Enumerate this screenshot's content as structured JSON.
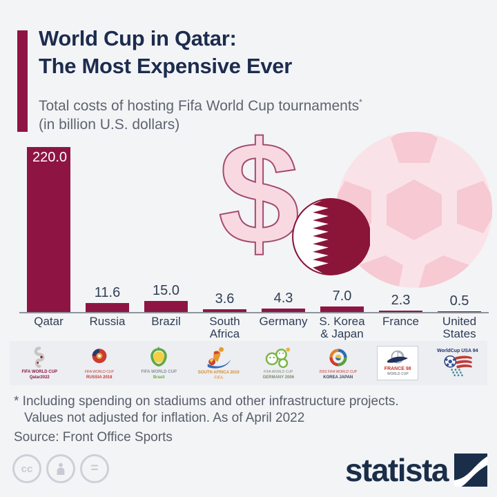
{
  "header": {
    "title_line1": "World Cup in Qatar:",
    "title_line2": "The Most Expensive Ever",
    "subtitle_line1": "Total costs of hosting Fifa World Cup tournaments",
    "subtitle_asterisk": "*",
    "subtitle_line2": "(in billion U.S. dollars)"
  },
  "chart_data": {
    "type": "bar",
    "title": "Total costs of hosting Fifa World Cup tournaments (in billion U.S. dollars)",
    "categories": [
      "Qatar",
      "Russia",
      "Brazil",
      "South\nAfrica",
      "Germany",
      "S. Korea\n& Japan",
      "France",
      "United\nStates"
    ],
    "values": [
      220.0,
      11.6,
      15.0,
      3.6,
      4.3,
      7.0,
      2.3,
      0.5
    ],
    "value_labels": [
      "220.0",
      "11.6",
      "15.0",
      "3.6",
      "4.3",
      "7.0",
      "2.3",
      "0.5"
    ],
    "xlabel": "",
    "ylabel": "Cost (billion U.S. dollars)",
    "ylim": [
      0,
      220
    ],
    "grid": false,
    "legend": false,
    "bar_color": "#8e1543"
  },
  "decorations": {
    "dollar_glyph": "$"
  },
  "logos": [
    {
      "name": "fifa-world-cup-qatar-2022-logo",
      "caption_line1": "FIFA WORLD CUP",
      "caption_line2": "Qatar2022"
    },
    {
      "name": "fifa-world-cup-russia-2018-logo",
      "caption_line1": "FIFA WORLD CUP",
      "caption_line2": "RUSSIA 2018"
    },
    {
      "name": "fifa-world-cup-brazil-2014-logo",
      "caption_line1": "FIFA WORLD CUP",
      "caption_line2": "Brasil"
    },
    {
      "name": "fifa-world-cup-south-africa-2010-logo",
      "caption_line1": "SOUTH AFRICA 2010",
      "caption_line2": "FIFA"
    },
    {
      "name": "fifa-world-cup-germany-2006-logo",
      "caption_line1": "FIFA WORLD CUP",
      "caption_line2": "GERMANY 2006"
    },
    {
      "name": "fifa-world-cup-korea-japan-2002-logo",
      "caption_line1": "2002 FIFA WORLD CUP",
      "caption_line2": "KOREA JAPAN"
    },
    {
      "name": "fifa-world-cup-france-1998-logo",
      "caption_line1": "FRANCE 98",
      "caption_line2": "WORLD CUP"
    },
    {
      "name": "fifa-world-cup-usa-1994-logo",
      "caption_line1": "WorldCup USA 94",
      "caption_line2": ""
    }
  ],
  "footnotes": {
    "line1": "* Including spending on stadiums and other infrastructure projects.",
    "line2": "Values not adjusted for inflation. As of April 2022",
    "source": "Source: Front Office Sports"
  },
  "branding": {
    "statista_label": "statista",
    "license_icons": [
      "cc",
      "attribution",
      "equal"
    ],
    "cc_label": "cc",
    "equal_label": "="
  },
  "colors": {
    "background": "#f3f4f6",
    "accent_maroon": "#8e1543",
    "title_navy": "#1c2c4e",
    "subtitle_gray": "#5d6570",
    "axis_gray": "#8d939c",
    "watermark_pink": "#f8d9e1",
    "watermark_pink_dark": "#f6c9d3",
    "flag_maroon": "#8a1538",
    "statista_navy": "#1a2e49",
    "logo_strip_bg": "#eceef2"
  }
}
